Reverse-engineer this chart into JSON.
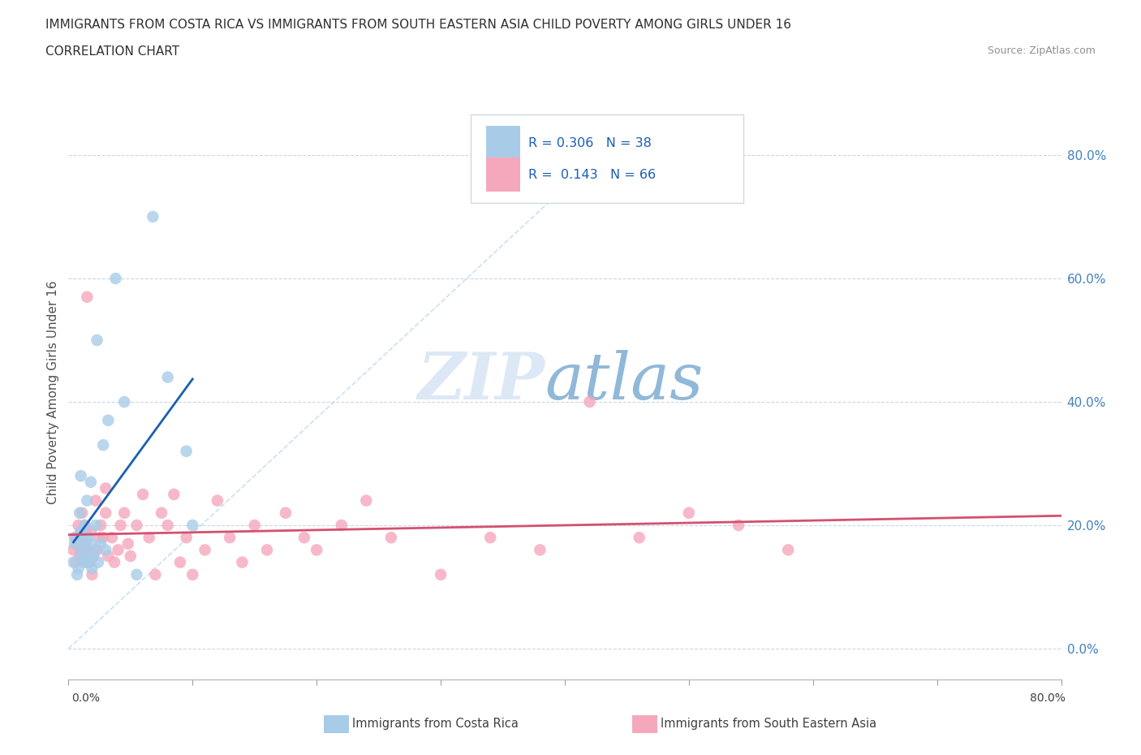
{
  "title_line1": "IMMIGRANTS FROM COSTA RICA VS IMMIGRANTS FROM SOUTH EASTERN ASIA CHILD POVERTY AMONG GIRLS UNDER 16",
  "title_line2": "CORRELATION CHART",
  "source": "Source: ZipAtlas.com",
  "ylabel": "Child Poverty Among Girls Under 16",
  "xlim": [
    0.0,
    0.8
  ],
  "ylim": [
    -0.05,
    0.88
  ],
  "yticks": [
    0.0,
    0.2,
    0.4,
    0.6,
    0.8
  ],
  "ytick_labels": [
    "0.0%",
    "20.0%",
    "40.0%",
    "60.0%",
    "80.0%"
  ],
  "xticks": [
    0.0,
    0.1,
    0.2,
    0.3,
    0.4,
    0.5,
    0.6,
    0.7,
    0.8
  ],
  "legend_label1": "Immigrants from Costa Rica",
  "legend_label2": "Immigrants from South Eastern Asia",
  "r1": 0.306,
  "n1": 38,
  "r2": 0.143,
  "n2": 66,
  "color_blue": "#a8cce8",
  "color_pink": "#f5a8bc",
  "color_blue_line": "#1a5fb4",
  "color_pink_line": "#d45070",
  "color_diag": "#a8cce8",
  "watermark_zip_color": "#dce8f5",
  "watermark_atlas_color": "#90b8d8",
  "grid_color": "#c8d8e8",
  "title_color": "#303030",
  "source_color": "#909090",
  "tick_label_color_blue": "#4080c0",
  "bottom_label_color": "#404040",
  "costa_rica_x": [
    0.004,
    0.005,
    0.006,
    0.007,
    0.008,
    0.009,
    0.01,
    0.01,
    0.011,
    0.012,
    0.012,
    0.013,
    0.013,
    0.014,
    0.015,
    0.015,
    0.016,
    0.017,
    0.018,
    0.018,
    0.019,
    0.02,
    0.021,
    0.022,
    0.023,
    0.024,
    0.026,
    0.028,
    0.03,
    0.032,
    0.038,
    0.045,
    0.055,
    0.068,
    0.08,
    0.095,
    0.1,
    0.01
  ],
  "costa_rica_y": [
    0.14,
    0.17,
    0.18,
    0.12,
    0.13,
    0.22,
    0.15,
    0.19,
    0.16,
    0.14,
    0.18,
    0.17,
    0.2,
    0.15,
    0.14,
    0.24,
    0.18,
    0.14,
    0.17,
    0.27,
    0.13,
    0.15,
    0.16,
    0.2,
    0.5,
    0.14,
    0.17,
    0.33,
    0.16,
    0.37,
    0.6,
    0.4,
    0.12,
    0.7,
    0.44,
    0.32,
    0.2,
    0.28
  ],
  "sea_x": [
    0.004,
    0.005,
    0.006,
    0.007,
    0.008,
    0.009,
    0.01,
    0.01,
    0.011,
    0.012,
    0.013,
    0.013,
    0.014,
    0.015,
    0.015,
    0.016,
    0.017,
    0.018,
    0.019,
    0.02,
    0.022,
    0.023,
    0.025,
    0.026,
    0.028,
    0.03,
    0.03,
    0.032,
    0.035,
    0.037,
    0.04,
    0.042,
    0.045,
    0.048,
    0.05,
    0.055,
    0.06,
    0.065,
    0.07,
    0.075,
    0.08,
    0.085,
    0.09,
    0.095,
    0.1,
    0.11,
    0.12,
    0.13,
    0.14,
    0.15,
    0.16,
    0.175,
    0.19,
    0.2,
    0.22,
    0.24,
    0.26,
    0.3,
    0.34,
    0.38,
    0.42,
    0.46,
    0.5,
    0.54,
    0.58,
    0.015
  ],
  "sea_y": [
    0.16,
    0.18,
    0.14,
    0.17,
    0.2,
    0.15,
    0.16,
    0.19,
    0.22,
    0.16,
    0.17,
    0.2,
    0.19,
    0.15,
    0.57,
    0.16,
    0.14,
    0.19,
    0.12,
    0.15,
    0.24,
    0.16,
    0.18,
    0.2,
    0.18,
    0.22,
    0.26,
    0.15,
    0.18,
    0.14,
    0.16,
    0.2,
    0.22,
    0.17,
    0.15,
    0.2,
    0.25,
    0.18,
    0.12,
    0.22,
    0.2,
    0.25,
    0.14,
    0.18,
    0.12,
    0.16,
    0.24,
    0.18,
    0.14,
    0.2,
    0.16,
    0.22,
    0.18,
    0.16,
    0.2,
    0.24,
    0.18,
    0.12,
    0.18,
    0.16,
    0.4,
    0.18,
    0.22,
    0.2,
    0.16,
    0.14
  ]
}
